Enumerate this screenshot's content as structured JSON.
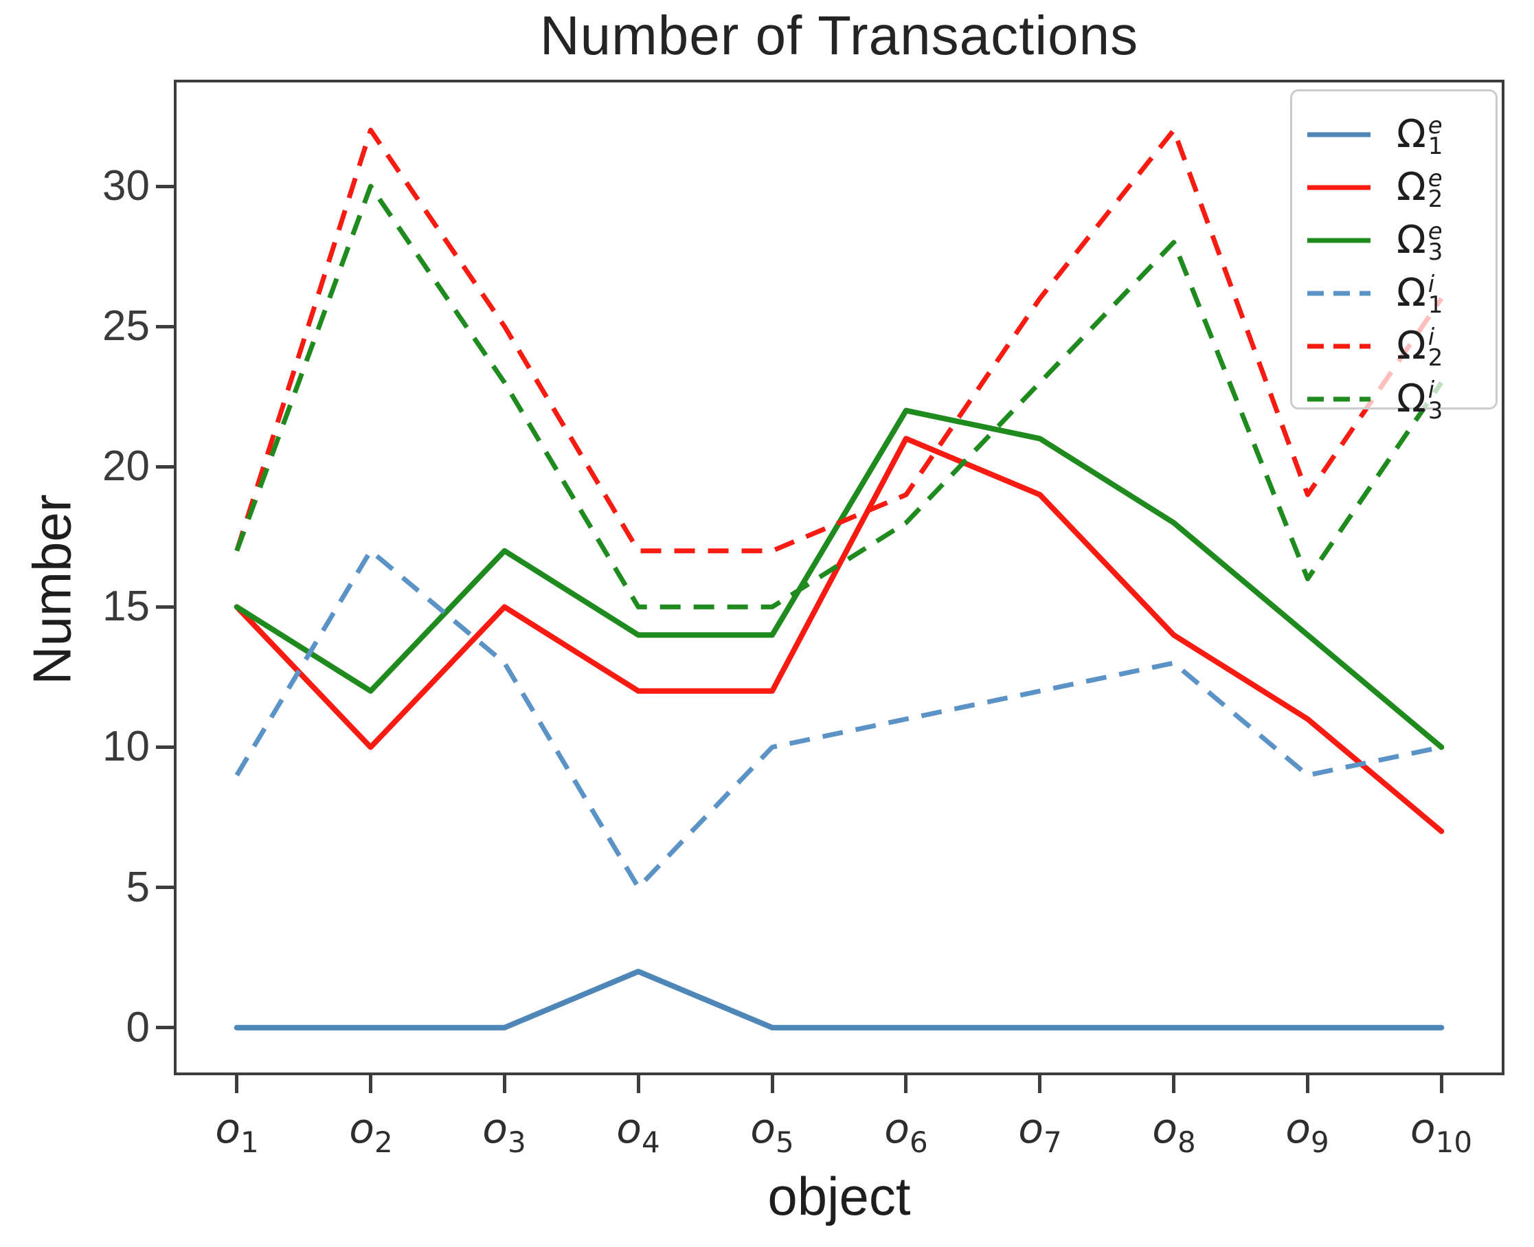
{
  "title": "Number of Transactions",
  "colors": {
    "blue_solid": "#4e86b8",
    "blue_dashed": "#5c93c6",
    "red": "#f71b12",
    "green": "#1f8b1f",
    "spine": "#3d3d3d",
    "tick_label": "#3a3a3a",
    "legend_border": "#cccccc"
  },
  "chart_data": {
    "type": "line",
    "title": "Number of Transactions",
    "xlabel": "object",
    "ylabel": "Number",
    "categories": [
      "o1",
      "o2",
      "o3",
      "o4",
      "o5",
      "o6",
      "o7",
      "o8",
      "o9",
      "o10"
    ],
    "yticks": [
      0,
      5,
      10,
      15,
      20,
      25,
      30
    ],
    "ylim": [
      -1.6,
      33.7
    ],
    "xlim": [
      -0.45,
      9.45
    ],
    "grid": false,
    "legend_position": "upper right",
    "series": [
      {
        "name": "Omega_1_e",
        "label": {
          "base": "Ω",
          "sup": "e",
          "sub": "1"
        },
        "color": "#4e86b8",
        "dashed": false,
        "values": [
          0,
          0,
          0,
          2,
          0,
          0,
          0,
          0,
          0,
          0
        ]
      },
      {
        "name": "Omega_2_e",
        "label": {
          "base": "Ω",
          "sup": "e",
          "sub": "2"
        },
        "color": "#f71b12",
        "dashed": false,
        "values": [
          15,
          10,
          15,
          12,
          12,
          21,
          19,
          14,
          11,
          7
        ]
      },
      {
        "name": "Omega_3_e",
        "label": {
          "base": "Ω",
          "sup": "e",
          "sub": "3"
        },
        "color": "#1f8b1f",
        "dashed": false,
        "values": [
          15,
          12,
          17,
          14,
          14,
          22,
          21,
          18,
          14,
          10
        ]
      },
      {
        "name": "Omega_1_i",
        "label": {
          "base": "Ω",
          "sup": "i",
          "sub": "1"
        },
        "color": "#5c93c6",
        "dashed": true,
        "values": [
          9,
          17,
          13,
          5,
          10,
          11,
          12,
          13,
          9,
          10
        ]
      },
      {
        "name": "Omega_2_i",
        "label": {
          "base": "Ω",
          "sup": "i",
          "sub": "2"
        },
        "color": "#f71b12",
        "dashed": true,
        "values": [
          17,
          32,
          25,
          17,
          17,
          19,
          26,
          32,
          19,
          26
        ]
      },
      {
        "name": "Omega_3_i",
        "label": {
          "base": "Ω",
          "sup": "i",
          "sub": "3"
        },
        "color": "#1f8b1f",
        "dashed": true,
        "values": [
          17,
          30,
          23,
          15,
          15,
          18,
          23,
          28,
          16,
          23
        ]
      }
    ]
  }
}
